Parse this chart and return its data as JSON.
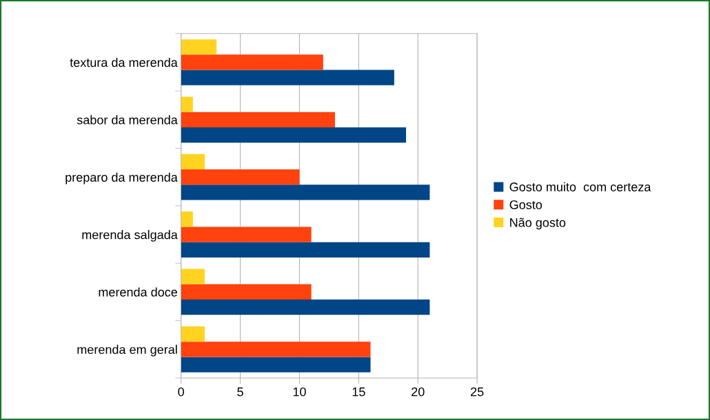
{
  "chart_data": {
    "type": "bar",
    "orientation": "horizontal",
    "categories": [
      "textura da merenda",
      "sabor da merenda",
      "preparo da merenda",
      "merenda salgada",
      "merenda doce",
      "merenda em geral"
    ],
    "series": [
      {
        "name": "Gosto muito  com certeza",
        "color": "#004586",
        "values": [
          18,
          19,
          21,
          21,
          21,
          16
        ]
      },
      {
        "name": "Gosto",
        "color": "#ff420e",
        "values": [
          12,
          13,
          10,
          11,
          11,
          16
        ]
      },
      {
        "name": "Não gosto",
        "color": "#ffd320",
        "values": [
          3,
          1,
          2,
          1,
          2,
          2
        ]
      }
    ],
    "xlim": [
      0,
      25
    ],
    "xticks": [
      0,
      5,
      10,
      15,
      20,
      25
    ],
    "grid": "x",
    "legend": "right"
  }
}
